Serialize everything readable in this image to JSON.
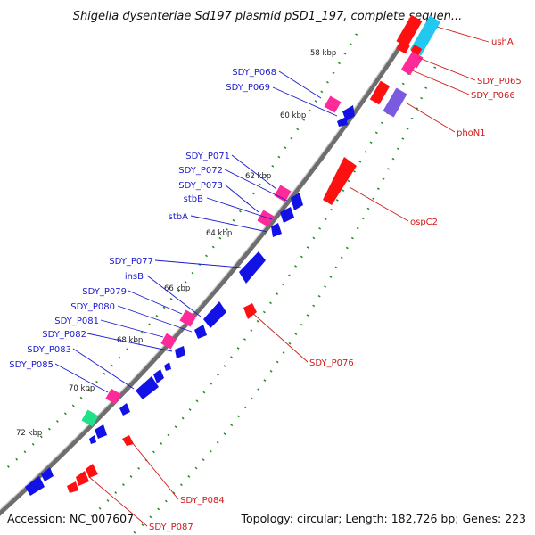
{
  "title": "Shigella dysenteriae Sd197 plasmid pSD1_197, complete sequen...",
  "footer": {
    "accession": "Accession: NC_007607",
    "summary": "Topology: circular; Length: 182,726 bp; Genes: 223"
  },
  "scale_labels": [
    "58 kbp",
    "60 kbp",
    "62 kbp",
    "64 kbp",
    "66 kbp",
    "68 kbp",
    "70 kbp",
    "72 kbp"
  ],
  "left_labels": [
    "SDY_P068",
    "SDY_P069",
    "SDY_P071",
    "SDY_P072",
    "SDY_P073",
    "stbB",
    "stbA",
    "SDY_P077",
    "insB",
    "SDY_P079",
    "SDY_P080",
    "SDY_P081",
    "SDY_P082",
    "SDY_P083",
    "SDY_P085"
  ],
  "right_labels": [
    "ushA",
    "SDY_P065",
    "SDY_P066",
    "phoN1",
    "ospC2",
    "SDY_P076",
    "SDY_P084",
    "SDY_P087"
  ],
  "colors": {
    "backbone": "#7a7a7a",
    "forward_gene": "#ff1010",
    "reverse_gene": "#1212e6",
    "pseudo_gene": "#ff2a9a",
    "rna_gene": "#20e08a",
    "other_gene": "#7a5ae0",
    "cyan_gene": "#22c8f0",
    "tick": "#1e8a1e",
    "label_blue": "#1a1ad0",
    "label_red": "#d01a1a"
  }
}
